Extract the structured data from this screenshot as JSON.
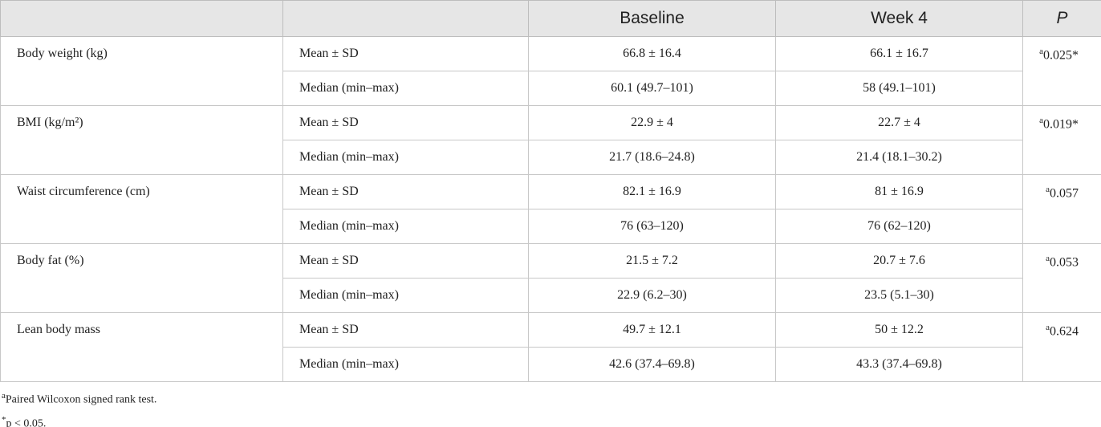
{
  "table": {
    "columns": [
      "Baseline",
      "Week 4",
      "P"
    ],
    "groups": [
      {
        "label": "Body weight (kg)",
        "rows": [
          [
            "Mean ± SD",
            "66.8 ± 16.4",
            "66.1 ± 16.7"
          ],
          [
            "Median (min–max)",
            "60.1 (49.7–101)",
            "58 (49.1–101)"
          ]
        ],
        "p_note": "a",
        "p": "0.025*"
      },
      {
        "label": "BMI (kg/m²)",
        "rows": [
          [
            "Mean ± SD",
            "22.9 ± 4",
            "22.7 ± 4"
          ],
          [
            "Median (min–max)",
            "21.7 (18.6–24.8)",
            "21.4 (18.1–30.2)"
          ]
        ],
        "p_note": "a",
        "p": "0.019*"
      },
      {
        "label": "Waist circumference (cm)",
        "rows": [
          [
            "Mean ± SD",
            "82.1 ± 16.9",
            "81 ± 16.9"
          ],
          [
            "Median (min–max)",
            "76 (63–120)",
            "76 (62–120)"
          ]
        ],
        "p_note": "a",
        "p": "0.057"
      },
      {
        "label": "Body fat (%)",
        "rows": [
          [
            "Mean ± SD",
            "21.5 ± 7.2",
            "20.7 ± 7.6"
          ],
          [
            "Median (min–max)",
            "22.9 (6.2–30)",
            "23.5 (5.1–30)"
          ]
        ],
        "p_note": "a",
        "p": "0.053"
      },
      {
        "label": "Lean body mass",
        "rows": [
          [
            "Mean ± SD",
            "49.7 ± 12.1",
            "50 ± 12.2"
          ],
          [
            "Median (min–max)",
            "42.6 (37.4–69.8)",
            "43.3 (37.4–69.8)"
          ]
        ],
        "p_note": "a",
        "p": "0.624"
      }
    ],
    "footnotes": [
      {
        "mark": "a",
        "text": "Paired Wilcoxon signed rank test."
      },
      {
        "mark": "*",
        "text": "p < 0.05."
      }
    ]
  }
}
